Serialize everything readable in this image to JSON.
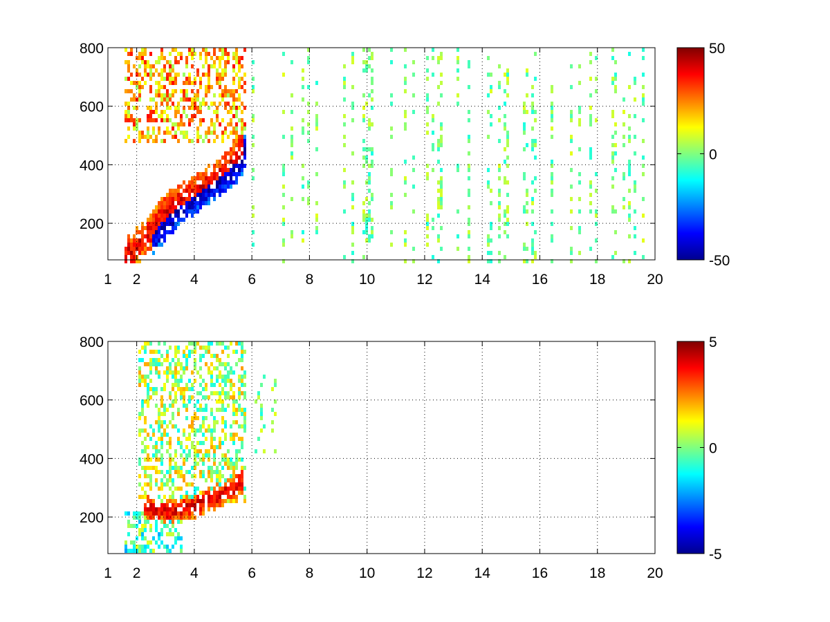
{
  "chart_data": [
    {
      "type": "heatmap",
      "title": "",
      "xlabel": "",
      "ylabel": "",
      "xlim": [
        1,
        20
      ],
      "ylim": [
        75,
        800
      ],
      "grid": true,
      "colormap": "jet",
      "x_ticks": [
        1,
        2,
        4,
        6,
        8,
        10,
        12,
        14,
        16,
        18,
        20
      ],
      "x_tick_labels": [
        "1",
        "2",
        "4",
        "6",
        "8",
        "10",
        "12",
        "14",
        "16",
        "18",
        "20"
      ],
      "y_ticks": [
        200,
        400,
        600,
        800
      ],
      "y_tick_labels": [
        "200",
        "400",
        "600",
        "800"
      ],
      "colorbar": {
        "range": [
          -50,
          50
        ],
        "tick_values": [
          50,
          0,
          -50
        ],
        "tick_labels": [
          "50",
          "0",
          "-50"
        ]
      },
      "features": [
        {
          "kind": "ridge",
          "points": [
            [
              1.5,
              90
            ],
            [
              2.2,
              150
            ],
            [
              3.0,
              250
            ],
            [
              4.0,
              310
            ],
            [
              5.0,
              380
            ],
            [
              5.7,
              470
            ]
          ],
          "value": 40,
          "width": 45
        },
        {
          "kind": "ridge",
          "points": [
            [
              2.5,
              150
            ],
            [
              3.5,
              260
            ],
            [
              4.5,
              330
            ],
            [
              5.5,
              400
            ],
            [
              5.8,
              480
            ]
          ],
          "value": -45,
          "width": 40
        },
        {
          "kind": "band",
          "x_range": [
            1.5,
            5.8
          ],
          "y_range": [
            480,
            800
          ],
          "value": 20
        },
        {
          "kind": "band",
          "x_range": [
            5.8,
            20
          ],
          "y_range": [
            75,
            800
          ],
          "value": 0,
          "density": "sparse"
        }
      ]
    },
    {
      "type": "heatmap",
      "title": "",
      "xlabel": "",
      "ylabel": "",
      "xlim": [
        1,
        20
      ],
      "ylim": [
        75,
        800
      ],
      "grid": true,
      "colormap": "jet",
      "x_ticks": [
        1,
        2,
        4,
        6,
        8,
        10,
        12,
        14,
        16,
        18,
        20
      ],
      "x_tick_labels": [
        "1",
        "2",
        "4",
        "6",
        "8",
        "10",
        "12",
        "14",
        "16",
        "18",
        "20"
      ],
      "y_ticks": [
        200,
        400,
        600,
        800
      ],
      "y_tick_labels": [
        "200",
        "400",
        "600",
        "800"
      ],
      "colorbar": {
        "range": [
          -5,
          5
        ],
        "tick_values": [
          5,
          0,
          -5
        ],
        "tick_labels": [
          "5",
          "0",
          "-5"
        ]
      },
      "features": [
        {
          "kind": "ridge",
          "points": [
            [
              2.2,
              240
            ],
            [
              3.0,
              225
            ],
            [
              4.0,
              245
            ],
            [
              5.0,
              290
            ],
            [
              5.7,
              330
            ]
          ],
          "value": 4,
          "width": 30
        },
        {
          "kind": "band",
          "x_range": [
            2.0,
            5.8
          ],
          "y_range": [
            260,
            800
          ],
          "value": 0.5
        },
        {
          "kind": "band",
          "x_range": [
            1.5,
            3.5
          ],
          "y_range": [
            80,
            220
          ],
          "value": -0.5
        },
        {
          "kind": "band",
          "x_range": [
            6.0,
            6.8
          ],
          "y_range": [
            420,
            700
          ],
          "value": 0,
          "density": "sparse"
        }
      ]
    }
  ]
}
